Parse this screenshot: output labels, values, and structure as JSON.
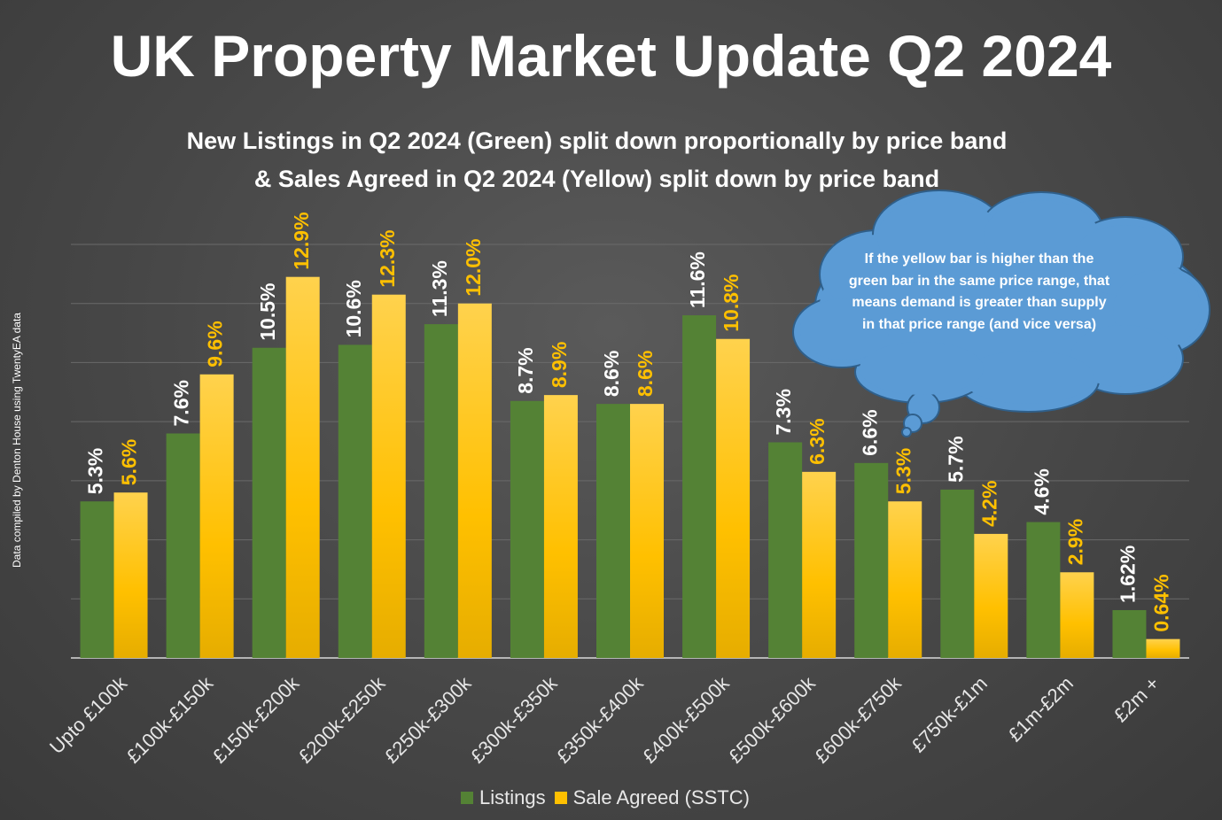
{
  "title": "UK Property Market Update Q2 2024",
  "subtitle_line1": "New Listings in Q2 2024 (Green) split down proportionally by price band",
  "subtitle_line2": "& Sales Agreed in Q2 2024 (Yellow) split down by price band",
  "side_note": "Data compiled by Denton House using TwentyEA data",
  "callout_text": "If the yellow bar is higher than the green bar in the same price range, that means demand is greater than supply in that price range (and vice versa)",
  "legend": {
    "listings": "Listings",
    "sale_agreed": "Sale Agreed (SSTC)"
  },
  "colors": {
    "listings": "#548235",
    "sale_agreed": "#ffc000",
    "listings_label": "#ffffff",
    "sale_agreed_label": "#ffc000",
    "callout": "#5b9bd5"
  },
  "chart_data": {
    "type": "bar",
    "categories": [
      "Upto £100k",
      "£100k-£150k",
      "£150k-£200k",
      "£200k-£250k",
      "£250k-£300k",
      "£300k-£350k",
      "£350k-£400k",
      "£400k-£500k",
      "£500k-£600k",
      "£600k-£750k",
      "£750k-£1m",
      "£1m-£2m",
      "£2m +"
    ],
    "series": [
      {
        "name": "Listings",
        "values": [
          5.3,
          7.6,
          10.5,
          10.6,
          11.3,
          8.7,
          8.6,
          11.6,
          7.3,
          6.6,
          5.7,
          4.6,
          1.62
        ],
        "labels": [
          "5.3%",
          "7.6%",
          "10.5%",
          "10.6%",
          "11.3%",
          "8.7%",
          "8.6%",
          "11.6%",
          "7.3%",
          "6.6%",
          "5.7%",
          "4.6%",
          "1.62%"
        ]
      },
      {
        "name": "Sale Agreed (SSTC)",
        "values": [
          5.6,
          9.6,
          12.9,
          12.3,
          12.0,
          8.9,
          8.6,
          10.8,
          6.3,
          5.3,
          4.2,
          2.9,
          0.64
        ],
        "labels": [
          "5.6%",
          "9.6%",
          "12.9%",
          "12.3%",
          "12.0%",
          "8.9%",
          "8.6%",
          "10.8%",
          "6.3%",
          "5.3%",
          "4.2%",
          "2.9%",
          "0.64%"
        ]
      }
    ],
    "ylim": [
      0,
      14
    ],
    "grid": true,
    "legend_position": "bottom"
  }
}
